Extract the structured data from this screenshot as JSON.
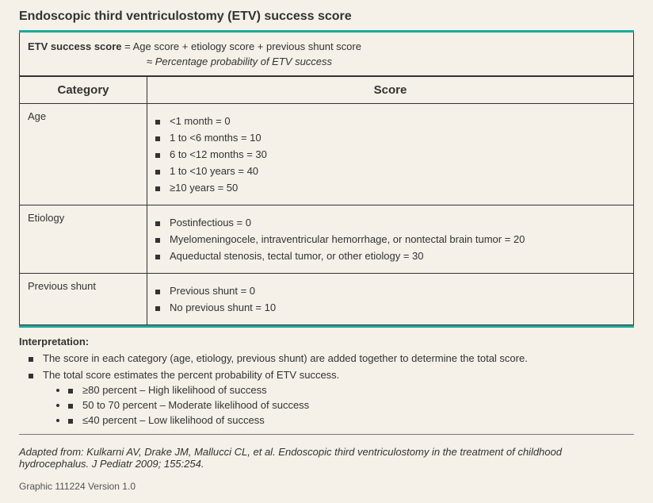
{
  "title": "Endoscopic third ventriculostomy (ETV) success score",
  "formula": {
    "label": "ETV success score",
    "eq_text": " = Age score + etiology score + previous shunt score",
    "approx_text": "≈ Percentage probability of ETV success"
  },
  "headers": {
    "category": "Category",
    "score": "Score"
  },
  "rows": [
    {
      "category": "Age",
      "items": [
        "<1 month = 0",
        "1 to <6 months = 10",
        "6 to <12 months = 30",
        "1 to <10 years = 40",
        "≥10 years = 50"
      ]
    },
    {
      "category": "Etiology",
      "items": [
        "Postinfectious = 0",
        "Myelomeningocele, intraventricular hemorrhage, or nontectal brain tumor = 20",
        "Aqueductal stenosis, tectal tumor, or other etiology = 30"
      ]
    },
    {
      "category": "Previous shunt",
      "items": [
        "Previous shunt = 0",
        "No previous shunt = 10"
      ]
    }
  ],
  "interpretation": {
    "label": "Interpretation:",
    "points": [
      "The score in each category (age, etiology, previous shunt) are added together to determine the total score.",
      "The total score estimates the percent probability of ETV success."
    ],
    "sub": [
      "≥80 percent – High likelihood of success",
      "50 to 70 percent – Moderate likelihood of success",
      "≤40 percent – Low likelihood of success"
    ]
  },
  "citation": "Adapted from: Kulkarni AV, Drake JM, Mallucci CL, et al. Endoscopic third ventriculostomy in the treatment of childhood hydrocephalus. J Pediatr 2009; 155:254.",
  "graphic_version": "Graphic 111224 Version 1.0",
  "colors": {
    "teal": "#1aa99a",
    "bg": "#f5f0e8",
    "text": "#333333"
  }
}
